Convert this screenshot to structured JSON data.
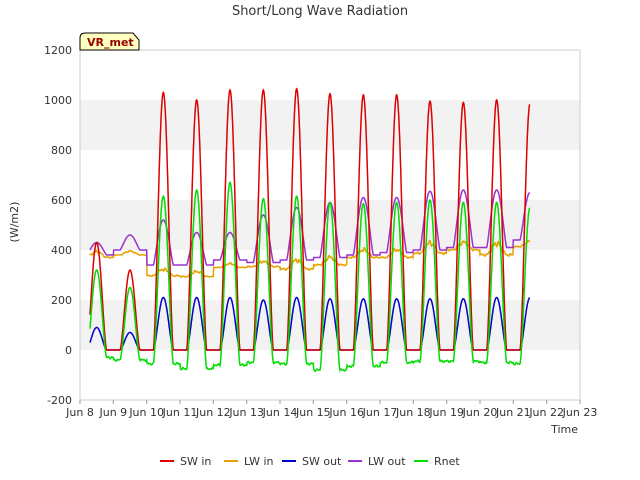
{
  "chart_data": {
    "type": "line",
    "title": "Short/Long Wave Radiation",
    "xlabel": "Time",
    "ylabel": "(W/m2)",
    "badge": "VR_met",
    "xlim": [
      8,
      23
    ],
    "ylim": [
      -200,
      1200
    ],
    "x_ticks": [
      {
        "value": 8,
        "label": "Jun 8"
      },
      {
        "value": 9,
        "label": "Jun 9"
      },
      {
        "value": 10,
        "label": "Jun 10"
      },
      {
        "value": 11,
        "label": "Jun 11"
      },
      {
        "value": 12,
        "label": "Jun 12"
      },
      {
        "value": 13,
        "label": "Jun 13"
      },
      {
        "value": 14,
        "label": "Jun 14"
      },
      {
        "value": 15,
        "label": "Jun 15"
      },
      {
        "value": 16,
        "label": "Jun 16"
      },
      {
        "value": 17,
        "label": "Jun 17"
      },
      {
        "value": 18,
        "label": "Jun 18"
      },
      {
        "value": 19,
        "label": "Jun 19"
      },
      {
        "value": 20,
        "label": "Jun 20"
      },
      {
        "value": 21,
        "label": "Jun 21"
      },
      {
        "value": 22,
        "label": "Jun 22"
      },
      {
        "value": 23,
        "label": "Jun 23"
      }
    ],
    "y_ticks": [
      -200,
      0,
      200,
      400,
      600,
      800,
      1000,
      1200
    ],
    "grid": "horizontal bands",
    "legend_position": "bottom",
    "days": [
      8.3,
      9.3,
      10.3,
      11.3,
      12.3,
      13.3,
      14.3,
      15.3,
      16.3,
      17.3,
      18.3,
      19.3,
      20.3,
      21.3
    ],
    "series": [
      {
        "name": "SW in",
        "color": "#dd0000",
        "daily_peak": [
          430,
          320,
          1030,
          1000,
          1040,
          1040,
          1045,
          1025,
          1020,
          1020,
          995,
          990,
          1000,
          985
        ]
      },
      {
        "name": "LW in",
        "color": "#e8a000",
        "daily_peak": [
          400,
          400,
          330,
          320,
          350,
          360,
          370,
          380,
          410,
          410,
          440,
          440,
          440,
          440
        ],
        "daily_min": [
          355,
          370,
          280,
          280,
          320,
          320,
          300,
          320,
          350,
          350,
          360,
          380,
          350,
          400
        ]
      },
      {
        "name": "SW out",
        "color": "#0000cc",
        "daily_peak": [
          90,
          70,
          210,
          210,
          210,
          200,
          210,
          205,
          205,
          205,
          205,
          205,
          210,
          210
        ]
      },
      {
        "name": "LW out",
        "color": "#9933cc",
        "daily_peak": [
          430,
          460,
          520,
          470,
          470,
          540,
          570,
          590,
          610,
          610,
          635,
          640,
          640,
          630
        ],
        "daily_min": [
          380,
          400,
          340,
          340,
          360,
          350,
          360,
          370,
          380,
          390,
          400,
          410,
          410,
          440
        ]
      },
      {
        "name": "Rnet",
        "color": "#00dd00",
        "daily_peak": [
          320,
          250,
          615,
          640,
          670,
          605,
          615,
          590,
          585,
          590,
          600,
          590,
          590,
          570
        ],
        "night_min": [
          -30,
          -40,
          -55,
          -75,
          -60,
          -50,
          -55,
          -80,
          -65,
          -50,
          -45,
          -45,
          -50,
          -55
        ]
      }
    ]
  }
}
